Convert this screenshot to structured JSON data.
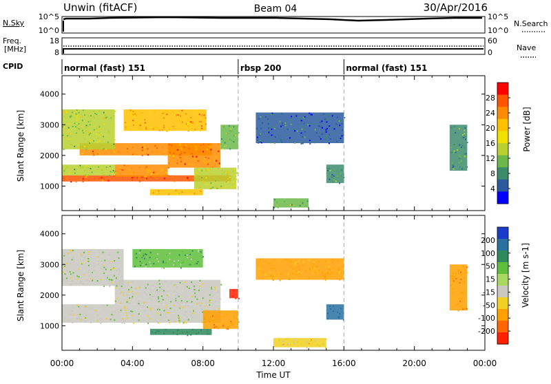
{
  "header": {
    "title": "Unwin (fitACF)",
    "beam": "Beam 04",
    "date": "30/Apr/2016"
  },
  "top_panels": {
    "nsky_label": "N.Sky",
    "nsky_tick_top": "10^5",
    "nsky_tick_bottom": "10^0",
    "nsearch_label": "N.Search",
    "nsearch_tick_top": "10^5",
    "nsearch_tick_bottom": "10^0",
    "freq_label_1": "Freq.",
    "freq_label_2": "[MHz]",
    "freq_tick_top": "18",
    "freq_tick_bottom": "8",
    "nave_label": "Nave",
    "nave_tick_top": "60",
    "nave_tick_bottom": "0",
    "cpid_label": "CPID",
    "cpid_segments": [
      {
        "label": "normal (fast) 151",
        "start": 0,
        "end": 10
      },
      {
        "label": "rbsp 200",
        "start": 10,
        "end": 16
      },
      {
        "label": "normal (fast) 151",
        "start": 16,
        "end": 24
      }
    ]
  },
  "chart_data": [
    {
      "type": "heatmap",
      "name": "power",
      "ylabel": "Slant Range [km]",
      "ylim": [
        200,
        4600
      ],
      "yticks": [
        1000,
        2000,
        3000,
        4000
      ],
      "xlim": [
        0,
        24
      ],
      "colorbar": {
        "label": "Power [dB]",
        "ticks": [
          "28",
          "24",
          "20",
          "16",
          "12",
          "8",
          "4"
        ],
        "colors": [
          "#ff0000",
          "#ff5500",
          "#ff8c00",
          "#ffc000",
          "#f0e000",
          "#b8d030",
          "#6cb84a",
          "#3c8c6c",
          "#2c5aa0",
          "#0000ff"
        ]
      },
      "regions": [
        {
          "t0": 0.0,
          "t1": 9.6,
          "r0": 1150,
          "r1": 1350,
          "value": 26
        },
        {
          "t0": 0.0,
          "t1": 3.0,
          "r0": 1350,
          "r1": 1700,
          "value": 14
        },
        {
          "t0": 3.0,
          "t1": 6.0,
          "r0": 1300,
          "r1": 1700,
          "value": 24
        },
        {
          "t0": 6.0,
          "t1": 9.0,
          "r0": 1600,
          "r1": 2400,
          "value": 25
        },
        {
          "t0": 1.0,
          "t1": 8.5,
          "r0": 2000,
          "r1": 2400,
          "value": 24
        },
        {
          "t0": 3.5,
          "t1": 8.2,
          "r0": 2800,
          "r1": 3500,
          "value": 22
        },
        {
          "t0": 0.0,
          "t1": 3.0,
          "r0": 2200,
          "r1": 3500,
          "value": 15
        },
        {
          "t0": 5.0,
          "t1": 8.0,
          "r0": 700,
          "r1": 900,
          "value": 20
        },
        {
          "t0": 7.5,
          "t1": 9.9,
          "r0": 900,
          "r1": 1600,
          "value": 16
        },
        {
          "t0": 9.0,
          "t1": 10.0,
          "r0": 2200,
          "r1": 3000,
          "value": 13
        },
        {
          "t0": 11.0,
          "t1": 16.0,
          "r0": 2400,
          "r1": 3400,
          "value": 7
        },
        {
          "t0": 12.0,
          "t1": 14.0,
          "r0": 300,
          "r1": 600,
          "value": 12
        },
        {
          "t0": 15.0,
          "t1": 16.0,
          "r0": 1100,
          "r1": 1700,
          "value": 10
        },
        {
          "t0": 22.0,
          "t1": 23.0,
          "r0": 1500,
          "r1": 3000,
          "value": 10
        }
      ]
    },
    {
      "type": "heatmap",
      "name": "velocity",
      "xlabel": "Time UT",
      "ylabel": "Slant Range [km]",
      "ylim": [
        200,
        4600
      ],
      "yticks": [
        1000,
        2000,
        3000,
        4000
      ],
      "xlim": [
        0,
        24
      ],
      "xticks": [
        "00:00",
        "04:00",
        "08:00",
        "12:00",
        "16:00",
        "20:00",
        "00:00"
      ],
      "colorbar": {
        "label": "Velocity [m s-1]",
        "ticks": [
          "200",
          "100",
          "50",
          "15",
          "-15",
          "-50",
          "-100",
          "-200"
        ],
        "colors": [
          "#1a3cc8",
          "#2a70a0",
          "#2e8a5c",
          "#5fbf3a",
          "#a8d860",
          "#c8c8c0",
          "#f0d020",
          "#ffa000",
          "#ff6600",
          "#ff2000"
        ]
      },
      "regions": [
        {
          "t0": 0.0,
          "t1": 9.0,
          "r0": 1100,
          "r1": 1700,
          "value": 0
        },
        {
          "t0": 3.0,
          "t1": 9.0,
          "r0": 1700,
          "r1": 2500,
          "value": 0
        },
        {
          "t0": 0.0,
          "t1": 3.5,
          "r0": 2300,
          "r1": 3500,
          "value": 0
        },
        {
          "t0": 4.0,
          "t1": 8.0,
          "r0": 2900,
          "r1": 3500,
          "value": 25
        },
        {
          "t0": 5.0,
          "t1": 8.5,
          "r0": 700,
          "r1": 900,
          "value": 60
        },
        {
          "t0": 8.0,
          "t1": 10.0,
          "r0": 900,
          "r1": 1500,
          "value": -80
        },
        {
          "t0": 9.5,
          "t1": 10.0,
          "r0": 1900,
          "r1": 2200,
          "value": -180
        },
        {
          "t0": 11.0,
          "t1": 16.0,
          "r0": 2500,
          "r1": 3200,
          "value": -60
        },
        {
          "t0": 12.0,
          "t1": 15.0,
          "r0": 300,
          "r1": 600,
          "value": -30
        },
        {
          "t0": 15.0,
          "t1": 16.0,
          "r0": 1200,
          "r1": 1700,
          "value": 120
        },
        {
          "t0": 22.0,
          "t1": 23.0,
          "r0": 1500,
          "r1": 3000,
          "value": -80
        }
      ]
    }
  ]
}
